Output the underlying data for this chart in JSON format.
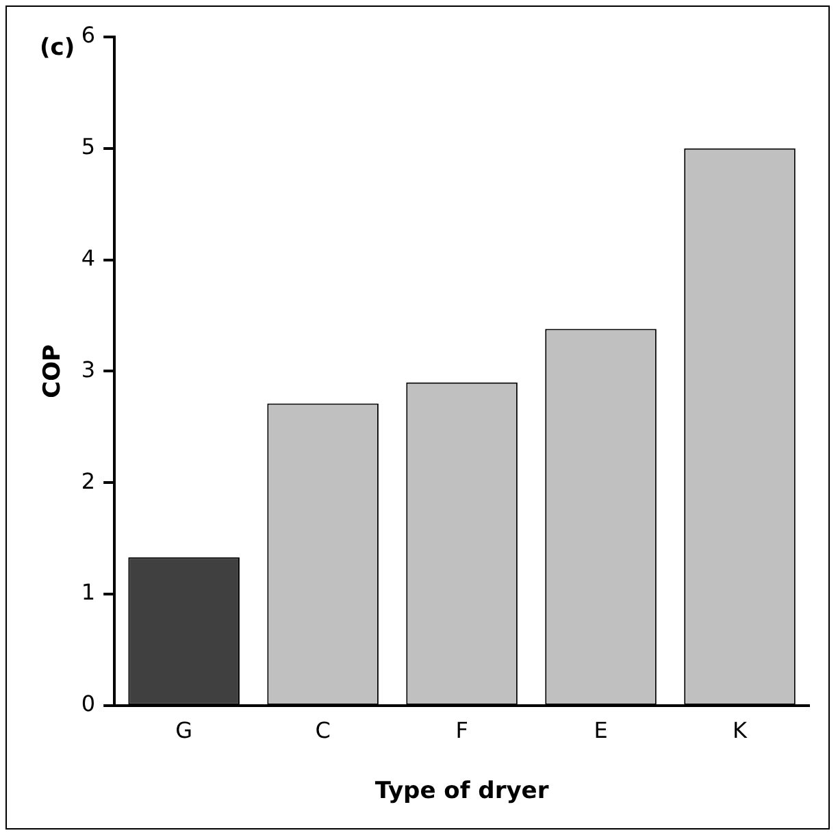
{
  "chart_data": {
    "type": "bar",
    "xlabel": "Type of dryer",
    "ylabel": "COP",
    "annotations": [
      "(c)"
    ],
    "categories": [
      "G",
      "C",
      "F",
      "E",
      "K"
    ],
    "values": [
      1.33,
      2.71,
      2.9,
      3.38,
      5.0
    ],
    "colors": [
      "#404040",
      "#c0c0c0",
      "#c0c0c0",
      "#c0c0c0",
      "#c0c0c0"
    ],
    "ylim": [
      0,
      6
    ],
    "yticks": [
      0,
      1,
      2,
      3,
      4,
      5,
      6
    ],
    "grid": false,
    "legend": false
  }
}
